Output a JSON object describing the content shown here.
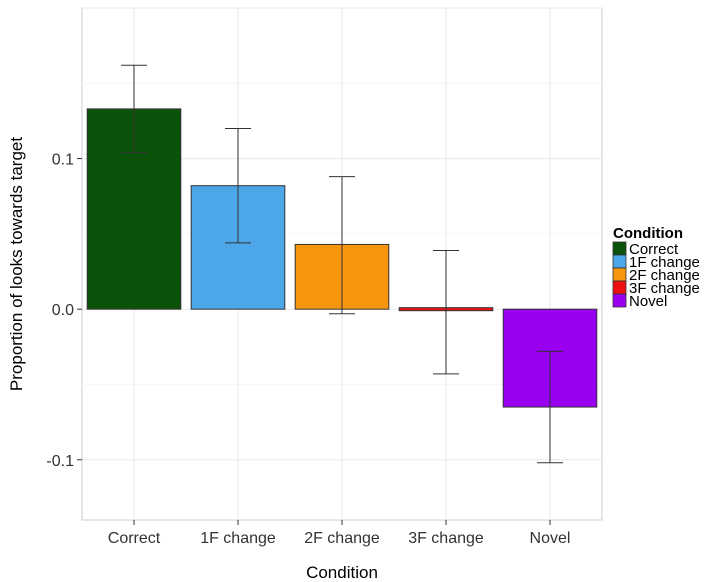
{
  "chart_data": {
    "type": "bar",
    "categories": [
      "Correct",
      "1F change",
      "2F change",
      "3F change",
      "Novel"
    ],
    "values": [
      0.133,
      0.082,
      0.043,
      -0.001,
      -0.065
    ],
    "error_low": [
      0.104,
      0.044,
      -0.003,
      -0.043,
      -0.102
    ],
    "error_high": [
      0.162,
      0.12,
      0.088,
      0.039,
      -0.028
    ],
    "colors": [
      "#0b520b",
      "#4ca6e8",
      "#f7960e",
      "#ee1111",
      "#9900f0"
    ],
    "xlabel": "Condition",
    "ylabel": "Proportion of looks towards target",
    "ylim": [
      -0.14,
      0.2
    ],
    "yticks": [
      -0.1,
      0.0,
      0.1
    ],
    "ytick_labels": [
      "-0.1",
      "0.0",
      "0.1"
    ],
    "grid": true,
    "legend": {
      "title": "Condition",
      "position": "right",
      "entries": [
        "Correct",
        "1F change",
        "2F change",
        "3F change",
        "Novel"
      ]
    }
  }
}
